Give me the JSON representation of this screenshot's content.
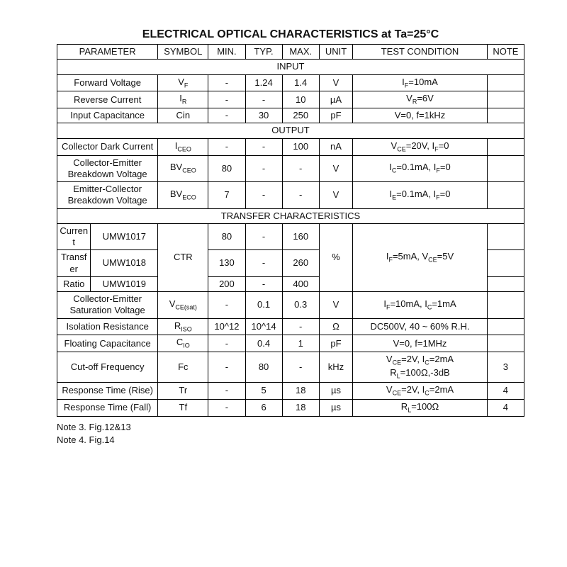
{
  "title": "ELECTRICAL OPTICAL CHARACTERISTICS at Ta=25°C",
  "headers": {
    "parameter": "PARAMETER",
    "symbol": "SYMBOL",
    "min": "MIN.",
    "typ": "TYP.",
    "max": "MAX.",
    "unit": "UNIT",
    "cond": "TEST CONDITION",
    "note": "NOTE"
  },
  "sections": {
    "input": "INPUT",
    "output": "OUTPUT",
    "transfer": "TRANSFER CHARACTERISTICS"
  },
  "rows": {
    "vf": {
      "param": "Forward Voltage",
      "min": "-",
      "typ": "1.24",
      "max": "1.4",
      "unit": "V"
    },
    "ir": {
      "param": "Reverse Current",
      "min": "-",
      "typ": "-",
      "max": "10",
      "unit": "µA"
    },
    "cin": {
      "param": "Input Capacitance",
      "sym": "Cin",
      "min": "-",
      "typ": "30",
      "max": "250",
      "unit": "pF",
      "cond": "V=0, f=1kHz"
    },
    "iceo": {
      "param": "Collector Dark Current",
      "min": "-",
      "typ": "-",
      "max": "100",
      "unit": "nA"
    },
    "bvceo": {
      "param1": "Collector-Emitter",
      "param2": "Breakdown Voltage",
      "min": "80",
      "typ": "-",
      "max": "-",
      "unit": "V"
    },
    "bveco": {
      "param1": "Emitter-Collector",
      "param2": "Breakdown Voltage",
      "min": "7",
      "typ": "-",
      "max": "-",
      "unit": "V"
    },
    "ctr1": {
      "pA": "Current",
      "pB": "UMW1017",
      "min": "80",
      "typ": "-",
      "max": "160"
    },
    "ctr2": {
      "pA": "Transfer",
      "pB": "UMW1018",
      "min": "130",
      "typ": "-",
      "max": "260",
      "unit": "%",
      "sym": "CTR"
    },
    "ctr3": {
      "pA": "Ratio",
      "pB": "UMW1019",
      "min": "200",
      "typ": "-",
      "max": "400"
    },
    "vcesat": {
      "param1": "Collector-Emitter",
      "param2": "Saturation Voltage",
      "min": "-",
      "typ": "0.1",
      "max": "0.3",
      "unit": "V"
    },
    "riso": {
      "param": "Isolation Resistance",
      "min": "10^12",
      "typ": "10^14",
      "max": "-",
      "unit": "Ω",
      "cond": "DC500V, 40 ~ 60% R.H."
    },
    "cio": {
      "param": "Floating Capacitance",
      "min": "-",
      "typ": "0.4",
      "max": "1",
      "unit": "pF",
      "cond": "V=0, f=1MHz"
    },
    "fc": {
      "param": "Cut-off Frequency",
      "sym": "Fc",
      "min": "-",
      "typ": "80",
      "max": "-",
      "unit": "kHz",
      "note": "3"
    },
    "tr": {
      "param": "Response Time (Rise)",
      "sym": "Tr",
      "min": "-",
      "typ": "5",
      "max": "18",
      "unit": "µs",
      "note": "4"
    },
    "tf": {
      "param": "Response Time (Fall)",
      "sym": "Tf",
      "min": "-",
      "typ": "6",
      "max": "18",
      "unit": "µs",
      "note": "4"
    }
  },
  "footnotes": {
    "n3": "Note 3. Fig.12&13",
    "n4": "Note 4. Fig.14"
  },
  "colors": {
    "border": "#000000",
    "text": "#111111",
    "background": "#ffffff"
  }
}
